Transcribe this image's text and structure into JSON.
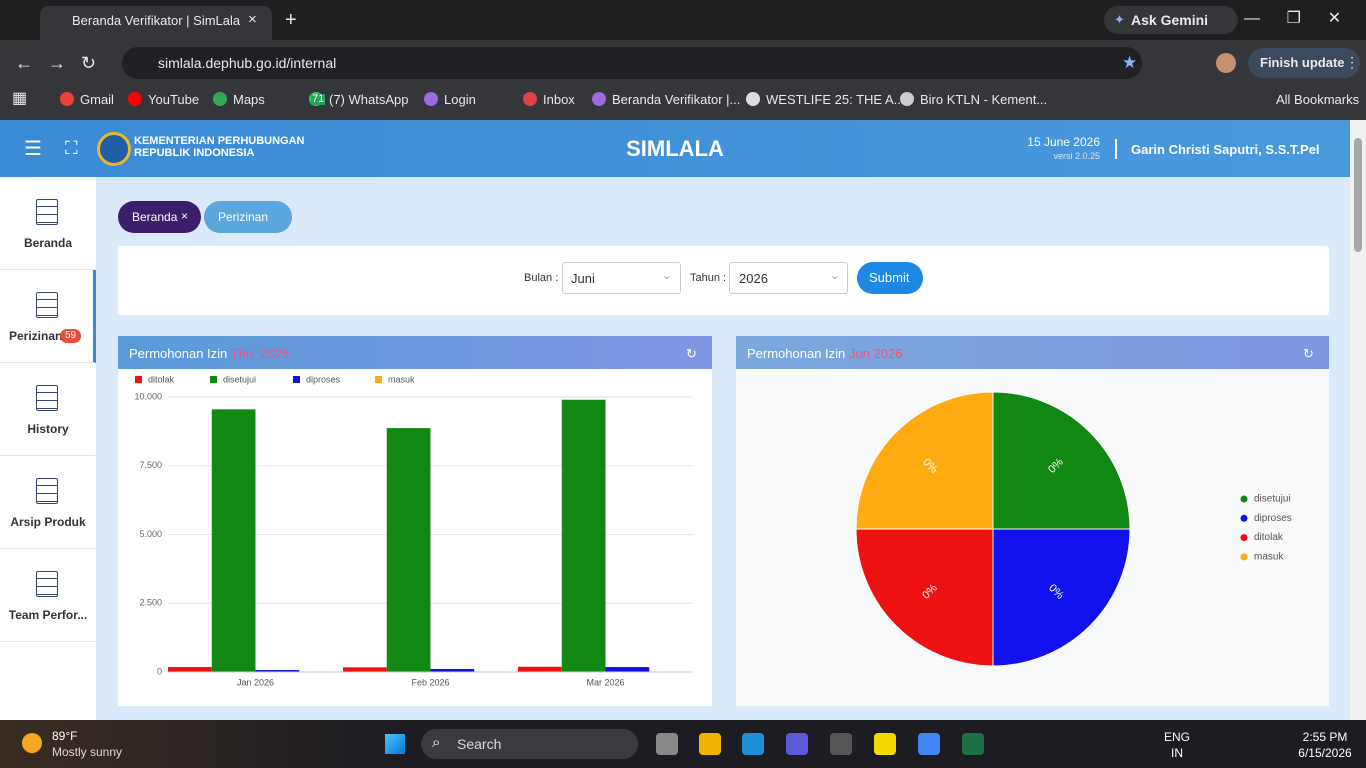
{
  "browser": {
    "tab_title": "Beranda Verifikator | SimLala",
    "url": "simlala.dephub.go.id/internal",
    "ask": "Ask Gemini",
    "update": "Finish update",
    "bookmarks": [
      "Gmail",
      "YouTube",
      "Maps",
      "(7) WhatsApp",
      "Login",
      "Inbox",
      "Beranda Verifikator |...",
      "WESTLIFE 25: THE A...",
      "Biro KTLN - Kement..."
    ],
    "whatsapp_badge": "71",
    "all_bookmarks": "All Bookmarks"
  },
  "header": {
    "org_line1": "KEMENTERIAN PERHUBUNGAN",
    "org_line2": "REPUBLIK INDONESIA",
    "app_name": "SIMLALA",
    "date": "15 June 2026",
    "version": "versi 2.0.25",
    "user": "Garin Christi Saputri, S.S.T.Pel"
  },
  "sidebar": [
    {
      "label": "Beranda"
    },
    {
      "label": "Perizinan",
      "badge": 59
    },
    {
      "label": "History"
    },
    {
      "label": "Arsip Produk"
    },
    {
      "label": "Team Perfor..."
    }
  ],
  "tabs": [
    "Beranda",
    "Perizinan"
  ],
  "filter": {
    "month_label": "Bulan :",
    "month": "Juni",
    "year_label": "Tahun :",
    "year": "2026",
    "submit": "Submit"
  },
  "chart_data": [
    {
      "type": "bar",
      "title": "Permohonan Izin",
      "title_highlight": "Thn. 2026",
      "categories": [
        "Jan 2026",
        "Feb 2026",
        "Mar 2026"
      ],
      "series": [
        {
          "name": "ditolak",
          "color": "#ee1111",
          "values": [
            180,
            170,
            190
          ]
        },
        {
          "name": "disetujui",
          "color": "#118811",
          "values": [
            9550,
            8870,
            9900
          ]
        },
        {
          "name": "diproses",
          "color": "#1111dd",
          "values": [
            70,
            110,
            180
          ]
        },
        {
          "name": "masuk",
          "color": "#ffaa11",
          "values": [
            0,
            0,
            0
          ]
        }
      ],
      "ylim": [
        0,
        10000
      ],
      "yticks": [
        0,
        {
          "value": 2500,
          "label": "2.500"
        },
        {
          "value": 5000,
          "label": "5.000"
        },
        {
          "value": 7500,
          "label": "7.500"
        },
        {
          "value": 10000,
          "label": "10.000"
        }
      ],
      "grid": true,
      "legend": "top-left"
    },
    {
      "type": "pie",
      "title": "Permohonan Izin",
      "title_highlight": "Jun 2026",
      "categories": [
        "disetujui",
        "diproses",
        "ditolak",
        "masuk"
      ],
      "values": [
        0,
        0,
        0,
        0
      ],
      "value_labels": [
        "0%",
        "0%",
        "0%",
        "0%"
      ],
      "colors": [
        "#118811",
        "#1111ee",
        "#ee1111",
        "#ffaa11"
      ],
      "legend": "right"
    }
  ],
  "taskbar": {
    "temperature": "89°F",
    "weather": "Mostly sunny",
    "search": "Search",
    "lang1": "ENG",
    "lang2": "IN",
    "time": "2:55 PM",
    "date": "6/15/2026"
  }
}
